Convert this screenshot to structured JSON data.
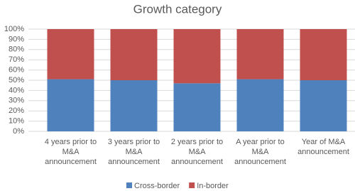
{
  "chart_data": {
    "type": "stacked_bar",
    "title": "Growth category",
    "categories": [
      "4 years prior to M&A announcement",
      "3 years prior to M&A announcement",
      "2 years prior to M&A announcement",
      "A year prior to M&A announcement",
      "Year of M&A announcement"
    ],
    "series": [
      {
        "name": "Cross-border",
        "color": "#4f81bd",
        "values": [
          51,
          50,
          47,
          51,
          50
        ]
      },
      {
        "name": "In-border",
        "color": "#c0504d",
        "values": [
          49,
          50,
          53,
          49,
          50
        ]
      }
    ],
    "ylim": [
      0,
      100
    ],
    "yticks": [
      {
        "value": 0,
        "label": "0%"
      },
      {
        "value": 10,
        "label": "10%"
      },
      {
        "value": 20,
        "label": "20%"
      },
      {
        "value": 30,
        "label": "30%"
      },
      {
        "value": 40,
        "label": "40%"
      },
      {
        "value": 50,
        "label": "50%"
      },
      {
        "value": 60,
        "label": "60%"
      },
      {
        "value": 70,
        "label": "70%"
      },
      {
        "value": 80,
        "label": "80%"
      },
      {
        "value": 90,
        "label": "90%"
      },
      {
        "value": 100,
        "label": "100%"
      }
    ],
    "grid": true
  }
}
